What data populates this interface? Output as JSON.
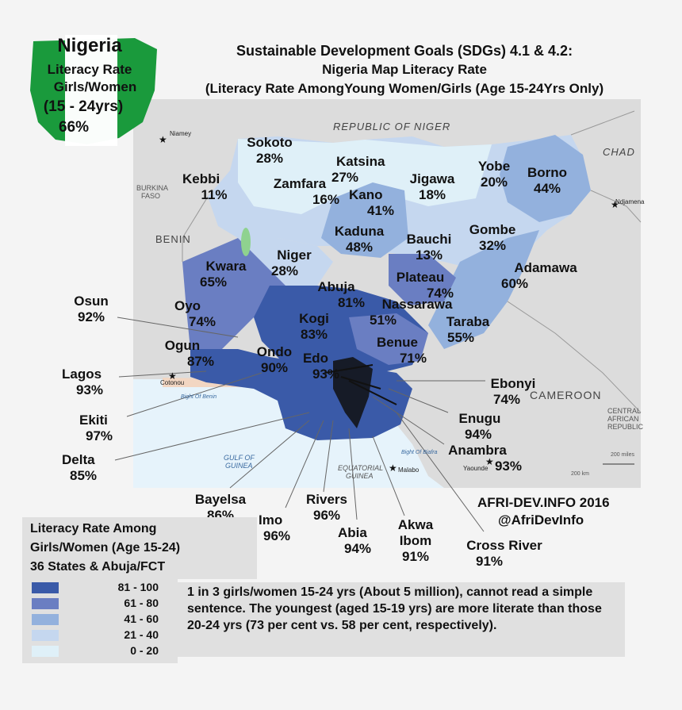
{
  "title": {
    "line1": "Sustainable Development Goals (SDGs) 4.1 & 4.2:",
    "line2": "Nigeria Map Literacy Rate",
    "line3": "(Literacy Rate AmongYoung Women/Girls (Age 15-24Yrs Only)"
  },
  "badge": {
    "country": "Nigeria",
    "line1": "Literacy Rate",
    "line2": "Girls/Women",
    "line3": "(15 - 24yrs)",
    "value": "66%"
  },
  "map_labels": {
    "niger": "REPUBLIC OF NIGER",
    "chad": "CHAD",
    "benin": "BENIN",
    "burkina": "BURKINA",
    "faso": "FASO",
    "cameroon": "CAMEROON",
    "car1": "CENTRAL",
    "car2": "AFRICAN",
    "car3": "REPUBLIC",
    "gulf1": "GULF OF",
    "gulf2": "GUINEA",
    "bight_benin": "Bight Of Benin",
    "bight_biafra": "Bight Of Biafra",
    "eqg1": "EQUATORIAL",
    "eqg2": "GUINEA",
    "scale1": "200 miles",
    "scale2": "200 km"
  },
  "cities": {
    "niamey": "Niamey",
    "ndjamena": "Ndjamena",
    "cotonou": "Cotonou",
    "malabo": "Malabo",
    "yaounde": "Yaounde"
  },
  "states": [
    {
      "name": "Sokoto",
      "value": "28%"
    },
    {
      "name": "Katsina",
      "value": "27%"
    },
    {
      "name": "Yobe",
      "value": "20%"
    },
    {
      "name": "Borno",
      "value": "44%"
    },
    {
      "name": "Kebbi",
      "value": "11%"
    },
    {
      "name": "Zamfara",
      "value": "16%"
    },
    {
      "name": "Kano",
      "value": "41%"
    },
    {
      "name": "Jigawa",
      "value": "18%"
    },
    {
      "name": "Kaduna",
      "value": "48%"
    },
    {
      "name": "Bauchi",
      "value": "13%"
    },
    {
      "name": "Gombe",
      "value": "32%"
    },
    {
      "name": "Kwara",
      "value": "65%"
    },
    {
      "name": "Niger",
      "value": "28%"
    },
    {
      "name": "Adamawa",
      "value": "60%"
    },
    {
      "name": "Plateau",
      "value": "74%"
    },
    {
      "name": "Abuja",
      "value": "81%"
    },
    {
      "name": "Osun",
      "value": "92%"
    },
    {
      "name": "Oyo",
      "value": "74%"
    },
    {
      "name": "Nassarawa",
      "value": "51%"
    },
    {
      "name": "Kogi",
      "value": "83%"
    },
    {
      "name": "Taraba",
      "value": "55%"
    },
    {
      "name": "Ogun",
      "value": "87%"
    },
    {
      "name": "Ondo",
      "value": "90%"
    },
    {
      "name": "Benue",
      "value": "71%"
    },
    {
      "name": "Edo",
      "value": "93%"
    },
    {
      "name": "Lagos",
      "value": "93%"
    },
    {
      "name": "Ebonyi",
      "value": "74%"
    },
    {
      "name": "Ekiti",
      "value": "97%"
    },
    {
      "name": "Enugu",
      "value": "94%"
    },
    {
      "name": "Delta",
      "value": "85%"
    },
    {
      "name": "Anambra",
      "value": "93%"
    },
    {
      "name": "Bayelsa",
      "value": "86%"
    },
    {
      "name": "Rivers",
      "value": "96%"
    },
    {
      "name": "Imo",
      "value": "96%"
    },
    {
      "name": "Abia",
      "value": "94%"
    },
    {
      "name": "Akwa",
      "value": "Ibom"
    },
    {
      "name": "Cross River",
      "value": "91%"
    }
  ],
  "akwa_ibom_value": "91%",
  "credit": {
    "line1": "AFRI-DEV.INFO 2016",
    "line2": "@AfriDevInfo"
  },
  "legend": {
    "title1": "Literacy Rate Among",
    "title2": "Girls/Women (Age 15-24)",
    "title3": "36 States & Abuja/FCT",
    "items": [
      {
        "label": "81 - 100",
        "color": "#3a5aa8"
      },
      {
        "label": "61 - 80",
        "color": "#6a7ec2"
      },
      {
        "label": "41 - 60",
        "color": "#93b1dd"
      },
      {
        "label": "21 - 40",
        "color": "#c5d7ef"
      },
      {
        "label": "0 - 20",
        "color": "#dff0f8"
      }
    ]
  },
  "note": "1 in 3 girls/women 15-24 yrs (About 5 million), cannot read a simple sentence. The youngest (aged 15-19 yrs) are more literate than those 20-24 yrs (73 per cent vs. 58 per cent, respectively)."
}
